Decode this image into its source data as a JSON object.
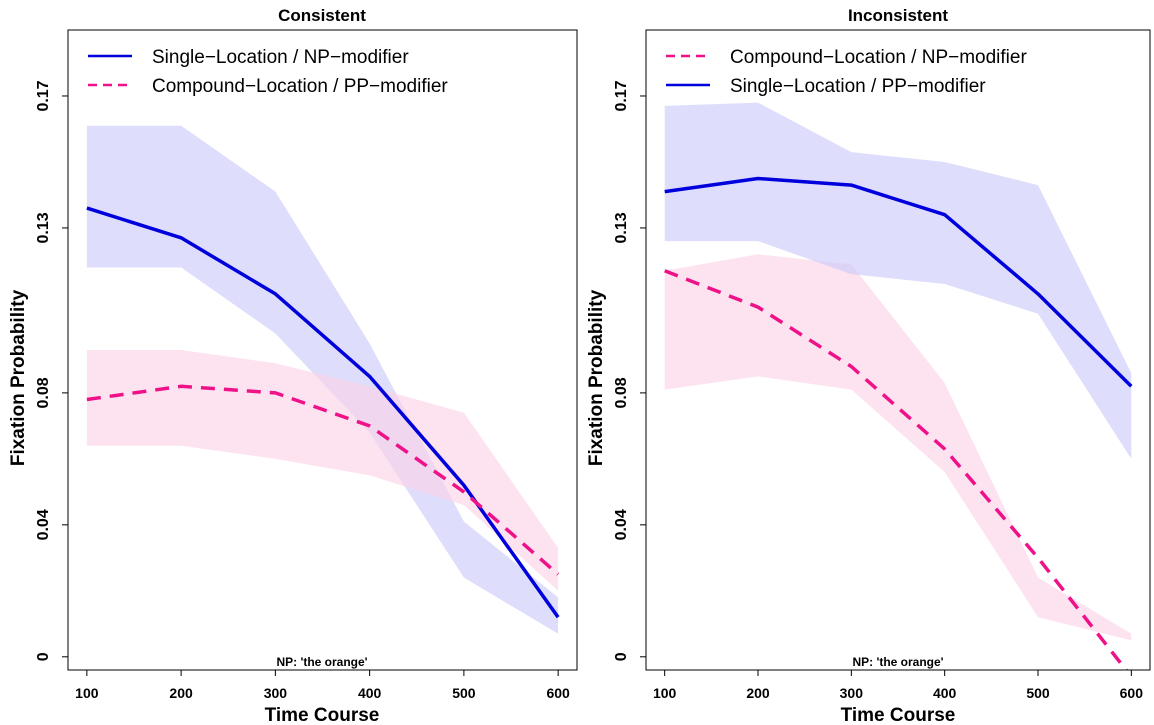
{
  "chart_data": [
    {
      "type": "line",
      "title": "Consistent",
      "xlabel": "Time Course",
      "ylabel": "Fixation Probability",
      "annotation": "NP: 'the orange'",
      "x": [
        100,
        200,
        300,
        400,
        500,
        600
      ],
      "xlim": [
        80,
        620
      ],
      "ylim": [
        -0.004,
        0.19
      ],
      "yticks": [
        0,
        0.04,
        0.08,
        0.13,
        0.17
      ],
      "ytick_labels": [
        "0",
        "0.04",
        "0.08",
        "0.13",
        "0.17"
      ],
      "legend_position": "top-left",
      "series": [
        {
          "name": "Single−Location / NP−modifier",
          "style": "solid",
          "color": "#0000dd",
          "band_color": "#c8c8fa",
          "values": [
            0.136,
            0.127,
            0.11,
            0.085,
            0.052,
            0.012
          ],
          "lower": [
            0.118,
            0.118,
            0.098,
            0.068,
            0.024,
            0.007
          ],
          "upper": [
            0.161,
            0.161,
            0.141,
            0.095,
            0.041,
            0.018
          ]
        },
        {
          "name": "Compound−Location / PP−modifier",
          "style": "dashed",
          "color": "#ee1188",
          "band_color": "#fbd0e6",
          "values": [
            0.078,
            0.082,
            0.08,
            0.07,
            0.05,
            0.025
          ],
          "lower": [
            0.064,
            0.064,
            0.06,
            0.055,
            0.046,
            0.02
          ],
          "upper": [
            0.093,
            0.093,
            0.089,
            0.082,
            0.074,
            0.033
          ]
        }
      ]
    },
    {
      "type": "line",
      "title": "Inconsistent",
      "xlabel": "Time Course",
      "ylabel": "Fixation Probability",
      "annotation": "NP: 'the orange'",
      "x": [
        100,
        200,
        300,
        400,
        500,
        600
      ],
      "xlim": [
        80,
        620
      ],
      "ylim": [
        -0.004,
        0.19
      ],
      "yticks": [
        0,
        0.04,
        0.08,
        0.13,
        0.17
      ],
      "ytick_labels": [
        "0",
        "0.04",
        "0.08",
        "0.13",
        "0.17"
      ],
      "legend_position": "top-left",
      "series": [
        {
          "name": "Compound−Location / NP−modifier",
          "style": "dashed",
          "color": "#ee1188",
          "band_color": "#fbd0e6",
          "values": [
            0.117,
            0.106,
            0.088,
            0.063,
            0.03,
            -0.006
          ],
          "lower": [
            0.081,
            0.085,
            0.081,
            0.056,
            0.012,
            0.005
          ],
          "upper": [
            0.117,
            0.122,
            0.119,
            0.083,
            0.024,
            0.007
          ]
        },
        {
          "name": "Single−Location / PP−modifier",
          "style": "solid",
          "color": "#0000dd",
          "band_color": "#c8c8fa",
          "values": [
            0.141,
            0.145,
            0.143,
            0.134,
            0.11,
            0.082
          ],
          "lower": [
            0.126,
            0.126,
            0.116,
            0.113,
            0.104,
            0.06
          ],
          "upper": [
            0.167,
            0.168,
            0.153,
            0.15,
            0.143,
            0.086
          ]
        }
      ]
    }
  ]
}
